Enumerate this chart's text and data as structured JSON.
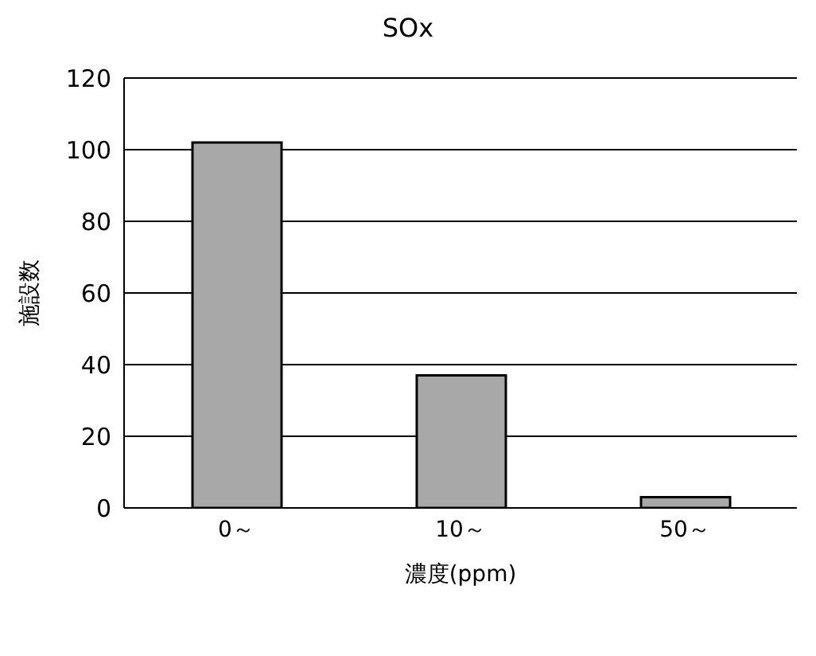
{
  "chart_data": {
    "type": "bar",
    "title": "SOx",
    "xlabel": "濃度(ppm)",
    "ylabel": "施設数",
    "categories": [
      "0～",
      "10～",
      "50～"
    ],
    "values": [
      102,
      37,
      3
    ],
    "color": "#a8a8a8",
    "ylim": [
      0,
      120
    ],
    "yticks": [
      0,
      20,
      40,
      60,
      80,
      100,
      120
    ],
    "grid": "y"
  }
}
